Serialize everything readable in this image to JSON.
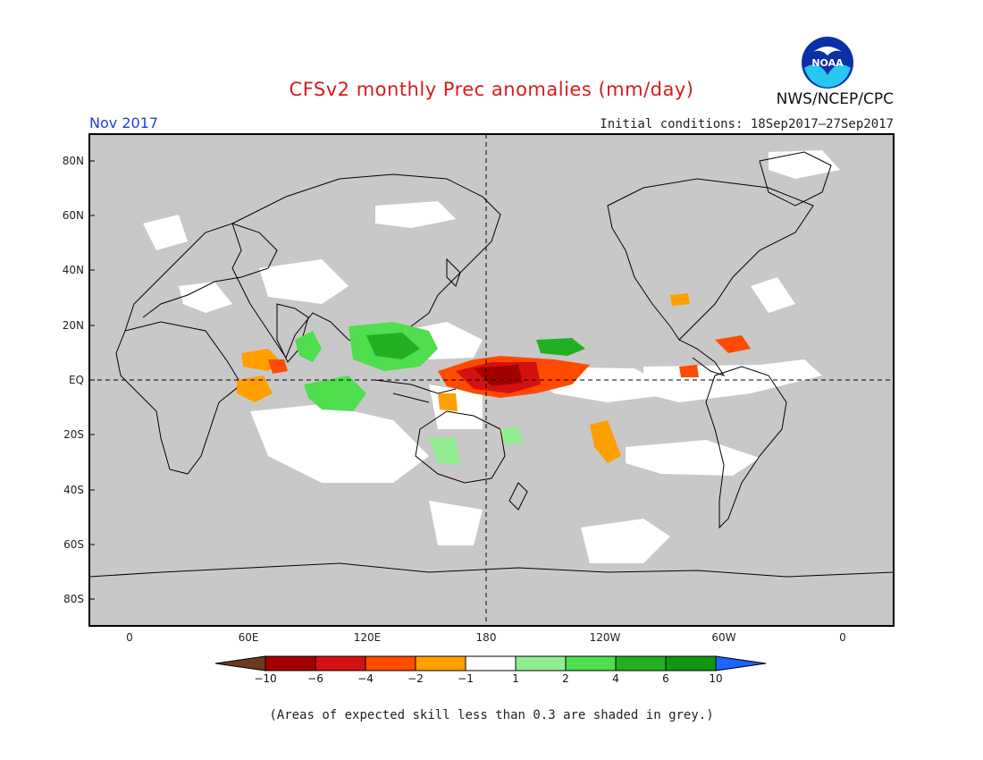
{
  "header": {
    "title": "CFSv2 monthly Prec anomalies (mm/day)",
    "month": "Nov 2017",
    "agency": "NWS/NCEP/CPC",
    "initial_conditions": "Initial conditions: 18Sep2017–27Sep2017",
    "logo_text": "NOAA"
  },
  "map": {
    "lat_labels": [
      "80N",
      "60N",
      "40N",
      "20N",
      "EQ",
      "20S",
      "40S",
      "60S",
      "80S"
    ],
    "lon_labels": [
      "0",
      "60E",
      "120E",
      "180",
      "120W",
      "60W",
      "0"
    ],
    "background_color": "#c8c8c8",
    "reference_lines": [
      "equator",
      "dateline"
    ]
  },
  "legend": {
    "labels": [
      "−10",
      "−6",
      "−4",
      "−2",
      "−1",
      "1",
      "2",
      "4",
      "6",
      "10"
    ],
    "colors": [
      "#6b3a1f",
      "#a50000",
      "#d41010",
      "#ff4a00",
      "#ff9f00",
      "#ffffff",
      "#90ee90",
      "#4ede4e",
      "#22b022",
      "#109610",
      "#1e64ff"
    ]
  },
  "footer": "(Areas of expected skill less than 0.3 are shaded in grey.)"
}
